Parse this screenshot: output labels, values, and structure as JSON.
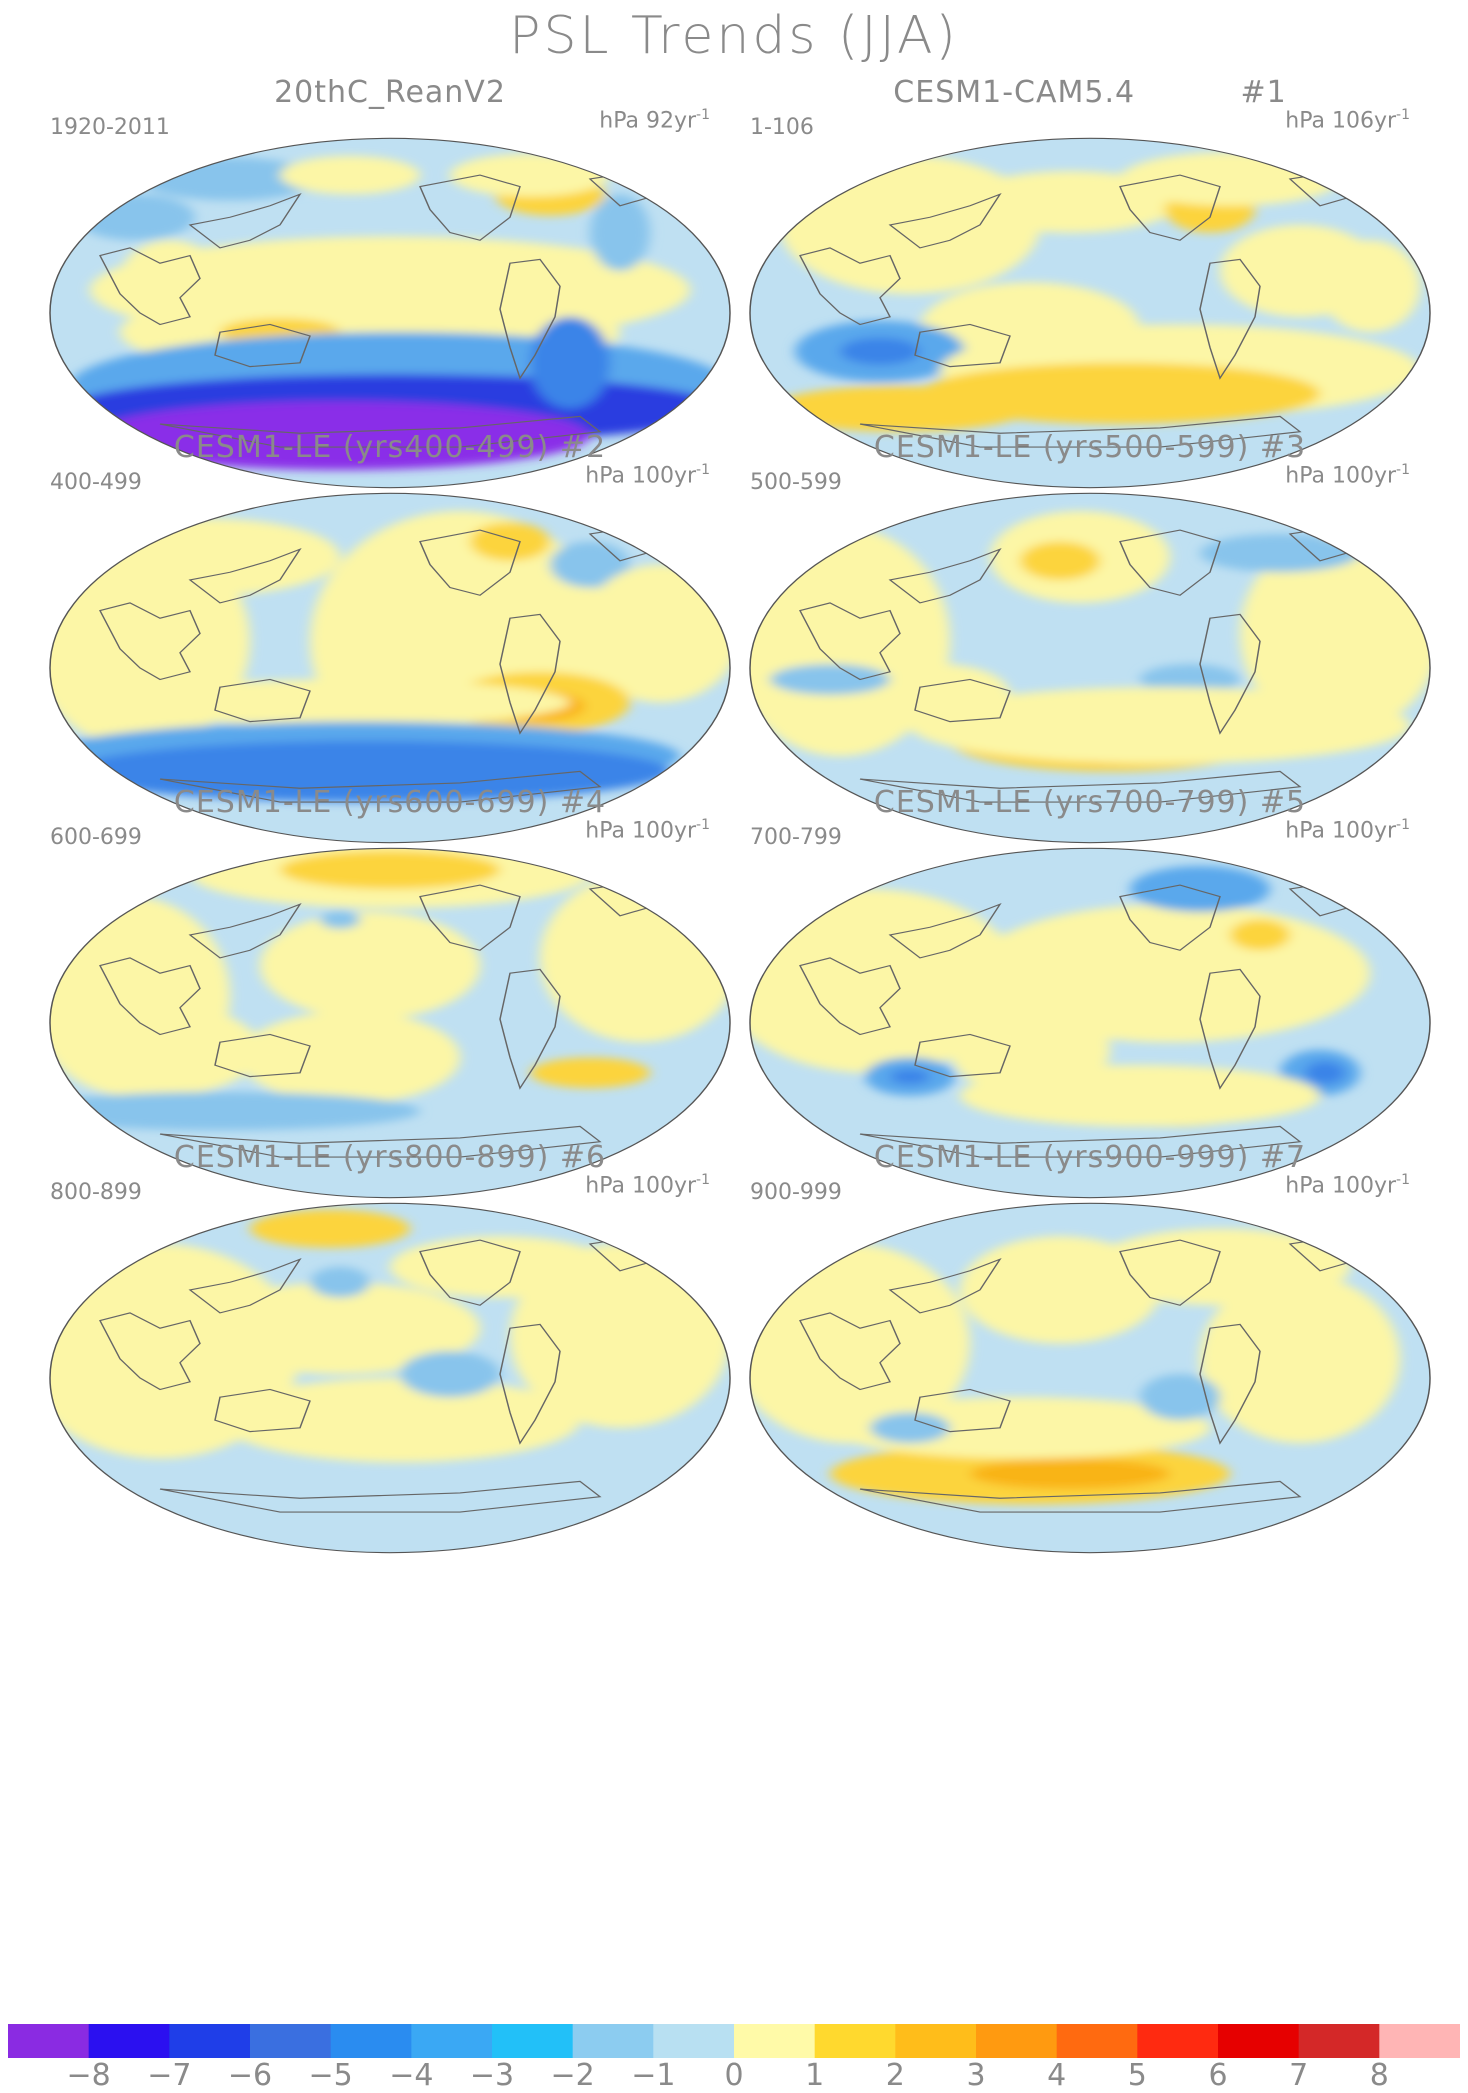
{
  "title": "PSL Trends (JJA)",
  "panels": [
    {
      "title": "20thC_ReanV2",
      "range": "1920-2011",
      "unit": "hPa 92yr",
      "unit_exp": "-1",
      "pattern": "obs"
    },
    {
      "title": "CESM1-CAM5.4          #1",
      "range": "1-106",
      "unit": "hPa 106yr",
      "unit_exp": "-1",
      "pattern": "p1"
    },
    {
      "title": "CESM1-LE (yrs400-499) #2",
      "range": "400-499",
      "unit": "hPa 100yr",
      "unit_exp": "-1",
      "pattern": "p2"
    },
    {
      "title": "CESM1-LE (yrs500-599) #3",
      "range": "500-599",
      "unit": "hPa 100yr",
      "unit_exp": "-1",
      "pattern": "p3"
    },
    {
      "title": "CESM1-LE (yrs600-699) #4",
      "range": "600-699",
      "unit": "hPa 100yr",
      "unit_exp": "-1",
      "pattern": "p4"
    },
    {
      "title": "CESM1-LE (yrs700-799) #5",
      "range": "700-799",
      "unit": "hPa 100yr",
      "unit_exp": "-1",
      "pattern": "p5"
    },
    {
      "title": "CESM1-LE (yrs800-899) #6",
      "range": "800-899",
      "unit": "hPa 100yr",
      "unit_exp": "-1",
      "pattern": "p6"
    },
    {
      "title": "CESM1-LE (yrs900-999) #7",
      "range": "900-999",
      "unit": "hPa 100yr",
      "unit_exp": "-1",
      "pattern": "p7"
    }
  ],
  "colorbar": {
    "labels": [
      "−8",
      "−7",
      "−6",
      "−5",
      "−4",
      "−3",
      "−2",
      "−1",
      "0",
      "1",
      "2",
      "3",
      "4",
      "5",
      "6",
      "7",
      "8"
    ],
    "colors": [
      "#8a2be2",
      "#2b10f0",
      "#1f3ee8",
      "#3a6fe0",
      "#2a8cf0",
      "#3aa8f4",
      "#22c0f8",
      "#8cccf0",
      "#b8e0f2",
      "#fffaa8",
      "#ffd92e",
      "#ffbd1a",
      "#ff9a10",
      "#ff6a10",
      "#ff2a10",
      "#e60000",
      "#d42828",
      "#ffb5b5"
    ]
  },
  "palette": {
    "pos1": "#fcf6a6",
    "pos2": "#fcd43c",
    "pos3": "#f9b418",
    "neg1": "#bfe0f2",
    "neg2": "#88c4ec",
    "neg3": "#5aa8ec",
    "neg4": "#3a84e8",
    "neg5": "#2a3ce0",
    "neg6": "#8a2ee8",
    "coast": "#666666"
  }
}
